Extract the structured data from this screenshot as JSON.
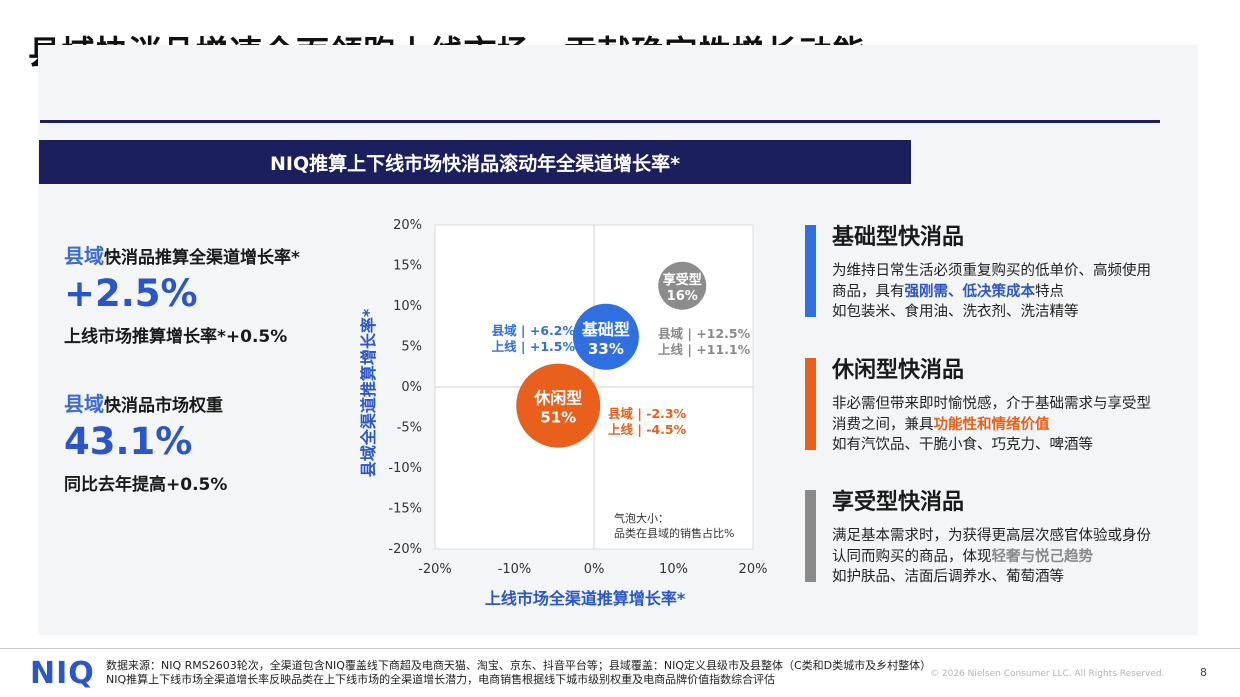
{
  "slide": {
    "title": "县域快消品增速全面领跑上线市场，贡献确定性增长动能",
    "banner": "NIQ推算上下线市场快消品滚动年全渠道增长率*"
  },
  "metrics": [
    {
      "region": "县域",
      "label_rest": "快消品推算全渠道增长率*",
      "value": "+2.5%",
      "sub": "上线市场推算增长率*+0.5%"
    },
    {
      "region": "县域",
      "label_rest": "快消品市场权重",
      "value": "43.1%",
      "sub": "同比去年提高+0.5%"
    }
  ],
  "chart_data": {
    "type": "scatter",
    "xlabel": "上线市场全渠道推算增长率*",
    "ylabel": "县域全渠道推算增长率*",
    "xlim": [
      -20,
      20
    ],
    "ylim": [
      -20,
      20
    ],
    "x_ticks": [
      "-20%",
      "-10%",
      "0%",
      "10%",
      "20%"
    ],
    "y_ticks": [
      "20%",
      "15%",
      "10%",
      "5%",
      "0%",
      "-5%",
      "-10%",
      "-15%",
      "-20%"
    ],
    "size_note": [
      "气泡大小：",
      "品类在县域的销售占比%"
    ],
    "series": [
      {
        "name": "基础型",
        "x": 1.5,
        "y": 6.2,
        "share": "33%",
        "color": "#2f6fe0",
        "annotation": [
          "县域 | +6.2%",
          "上线 | +1.5%"
        ]
      },
      {
        "name": "休闲型",
        "x": -4.5,
        "y": -2.3,
        "share": "51%",
        "color": "#e8601c",
        "annotation": [
          "县域 | -2.3%",
          "上线 | -4.5%"
        ]
      },
      {
        "name": "享受型",
        "x": 11.1,
        "y": 12.5,
        "share": "16%",
        "color": "#8c8c8c",
        "annotation": [
          "县域 | +12.5%",
          "上线 | +11.1%"
        ]
      }
    ]
  },
  "cards": [
    {
      "title": "基础型快消品",
      "color": "#2f6fe0",
      "hl_class": "hl-blue",
      "text_before": "为维持日常生活必须重复购买的低单价、高频使用商品，具有",
      "highlight": "强刚需、低决策成本",
      "text_after": "特点",
      "examples": "如包装米、食用油、洗衣剂、洗洁精等"
    },
    {
      "title": "休闲型快消品",
      "color": "#e8601c",
      "hl_class": "hl-orange",
      "text_before": "非必需但带来即时愉悦感，介于基础需求与享受型消费之间，兼具",
      "highlight": "功能性和情绪价值",
      "text_after": "",
      "examples": "如有汽饮品、干脆小食、巧克力、啤酒等"
    },
    {
      "title": "享受型快消品",
      "color": "#8a8a8a",
      "hl_class": "hl-gray",
      "text_before": "满足基本需求时，为获得更高层次感官体验或身份认同而购买的商品，体现",
      "highlight": "轻奢与悦己趋势",
      "text_after": "",
      "examples": "如护肤品、洁面后调养水、葡萄酒等"
    }
  ],
  "footer": {
    "logo": "NIQ",
    "source_line1": "数据来源：NIQ RMS2603轮次，全渠道包含NIQ覆盖线下商超及电商天猫、淘宝、京东、抖音平台等；县域覆盖：NIQ定义县级市及县整体（C类和D类城市及乡村整体）",
    "source_line2": "NIQ推算上下线市场全渠道增长率反映品类在上下线市场的全渠道增长潜力，电商销售根据线下城市级别权重及电商品牌价值指数综合评估",
    "copyright": "© 2026 Nielsen Consumer LLC. All Rights Reserved.",
    "page": "8"
  }
}
